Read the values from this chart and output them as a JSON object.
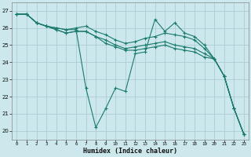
{
  "xlabel": "Humidex (Indice chaleur)",
  "background_color": "#cce8ec",
  "grid_color": "#aacdd3",
  "line_color": "#1a7a6e",
  "xlim": [
    -0.5,
    23.5
  ],
  "ylim": [
    19.5,
    27.5
  ],
  "xticks": [
    0,
    1,
    2,
    3,
    4,
    5,
    6,
    7,
    8,
    9,
    10,
    11,
    12,
    13,
    14,
    15,
    16,
    17,
    18,
    19,
    20,
    21,
    22,
    23
  ],
  "yticks": [
    20,
    21,
    22,
    23,
    24,
    25,
    26,
    27
  ],
  "lines": [
    {
      "x": [
        0,
        1,
        2,
        3,
        4,
        5,
        6,
        7,
        8,
        9,
        10,
        11,
        12,
        13,
        14,
        15,
        16,
        17,
        18,
        19,
        20,
        21,
        22,
        23
      ],
      "y": [
        26.8,
        26.8,
        26.3,
        26.1,
        26.0,
        25.9,
        25.9,
        22.5,
        20.2,
        21.3,
        22.5,
        22.3,
        24.5,
        24.6,
        26.5,
        25.8,
        26.3,
        25.7,
        25.5,
        25.0,
        24.2,
        23.2,
        21.3,
        19.8
      ]
    },
    {
      "x": [
        0,
        1,
        2,
        3,
        4,
        5,
        6,
        7,
        8,
        9,
        10,
        11,
        12,
        13,
        14,
        15,
        16,
        17,
        18,
        19,
        20,
        21,
        22,
        23
      ],
      "y": [
        26.8,
        26.8,
        26.3,
        26.1,
        26.0,
        25.9,
        26.0,
        26.1,
        25.8,
        25.6,
        25.3,
        25.1,
        25.2,
        25.4,
        25.5,
        25.7,
        25.6,
        25.5,
        25.3,
        24.8,
        24.2,
        23.2,
        21.3,
        19.8
      ]
    },
    {
      "x": [
        0,
        1,
        2,
        3,
        4,
        5,
        6,
        7,
        8,
        9,
        10,
        11,
        12,
        13,
        14,
        15,
        16,
        17,
        18,
        19,
        20,
        21,
        22,
        23
      ],
      "y": [
        26.8,
        26.8,
        26.3,
        26.1,
        25.9,
        25.7,
        25.8,
        25.8,
        25.5,
        25.3,
        25.0,
        24.8,
        24.9,
        25.0,
        25.1,
        25.2,
        25.0,
        24.9,
        24.8,
        24.5,
        24.2,
        23.2,
        21.3,
        19.8
      ]
    },
    {
      "x": [
        0,
        1,
        2,
        3,
        4,
        5,
        6,
        7,
        8,
        9,
        10,
        11,
        12,
        13,
        14,
        15,
        16,
        17,
        18,
        19,
        20,
        21,
        22,
        23
      ],
      "y": [
        26.8,
        26.8,
        26.3,
        26.1,
        25.9,
        25.7,
        25.8,
        25.8,
        25.5,
        25.1,
        24.9,
        24.7,
        24.7,
        24.8,
        24.9,
        25.0,
        24.8,
        24.7,
        24.6,
        24.3,
        24.2,
        23.2,
        21.3,
        19.8
      ]
    }
  ]
}
